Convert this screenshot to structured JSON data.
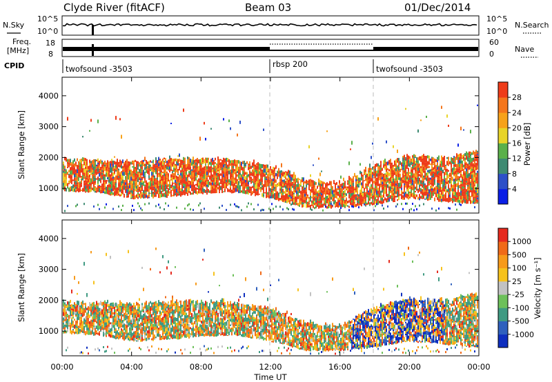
{
  "header": {
    "station": "Clyde River (fitACF)",
    "beam": "Beam 03",
    "date": "01/Dec/2014"
  },
  "top_panels": {
    "nsky_label": "N.Sky",
    "nsearch_label": "N.Search",
    "freq_label_1": "Freq.",
    "freq_label_2": "[MHz]",
    "nave_label": "Nave",
    "cpid_label": "CPID",
    "noise_ticks": {
      "upper": "10^5",
      "lower": "10^0"
    },
    "freq_ticks": {
      "upper": "18",
      "lower": "8"
    },
    "nave_ticks": {
      "upper": "60",
      "lower": "0"
    },
    "cpid_segments": [
      {
        "label": "twofsound -3503",
        "start_hour": 0
      },
      {
        "label": "rbsp 200",
        "start_hour": 12
      },
      {
        "label": "twofsound -3503",
        "start_hour": 18
      }
    ]
  },
  "axes": {
    "x_title": "Time UT",
    "x_ticks": [
      "00:00",
      "04:00",
      "08:00",
      "12:00",
      "16:00",
      "20:00",
      "00:00"
    ],
    "y_title": "Slant Range [km]",
    "y_ticks": [
      "1000",
      "2000",
      "3000",
      "4000"
    ]
  },
  "power_colorbar": {
    "title": "Power [dB]",
    "ticks": [
      "4",
      "8",
      "12",
      "16",
      "20",
      "24",
      "28"
    ],
    "colors": [
      "#0a1ee6",
      "#2d50c8",
      "#3e8a72",
      "#5ab04a",
      "#e8d428",
      "#f7a21a",
      "#f4761c",
      "#ee3c1a"
    ]
  },
  "velocity_colorbar": {
    "title": "Velocity [m s⁻¹]",
    "ticks": [
      "1000",
      "500",
      "100",
      "25",
      "-25",
      "-100",
      "-500",
      "-1000"
    ],
    "colors": [
      "#0e2ebe",
      "#2f60bd",
      "#3f9a82",
      "#6dc05a",
      "#c2c2c2",
      "#f6c21d",
      "#f79a1a",
      "#f06a18",
      "#e62a1e"
    ]
  },
  "chart_data": {
    "type": "heatmap",
    "x": [
      0,
      24
    ],
    "xlabel": "Time UT",
    "ylabel": "Slant Range [km]",
    "ylim": [
      200,
      4600
    ],
    "panels": [
      "Power [dB]",
      "Velocity [m s⁻¹]"
    ],
    "echo_band": [
      {
        "x": 0,
        "low": 950,
        "high": 1850
      },
      {
        "x": 2,
        "low": 900,
        "high": 1850
      },
      {
        "x": 4,
        "low": 700,
        "high": 1800
      },
      {
        "x": 6,
        "low": 750,
        "high": 1900
      },
      {
        "x": 8,
        "low": 850,
        "high": 1900
      },
      {
        "x": 10,
        "low": 900,
        "high": 1850
      },
      {
        "x": 12,
        "low": 700,
        "high": 1650
      },
      {
        "x": 14,
        "low": 400,
        "high": 1200
      },
      {
        "x": 16,
        "low": 400,
        "high": 1100
      },
      {
        "x": 18,
        "low": 500,
        "high": 1700
      },
      {
        "x": 20,
        "low": 700,
        "high": 2000
      },
      {
        "x": 22,
        "low": 600,
        "high": 1900
      },
      {
        "x": 24,
        "low": 500,
        "high": 2200
      }
    ],
    "dashed_time_markers": [
      12,
      18
    ],
    "grid": false
  }
}
